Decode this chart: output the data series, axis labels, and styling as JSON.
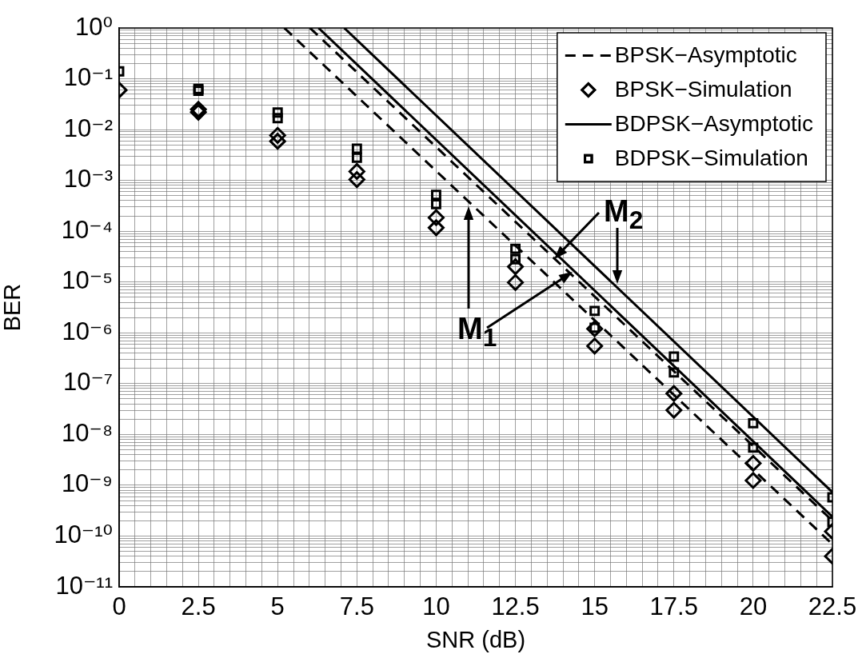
{
  "chart_data": {
    "type": "scatter",
    "xlabel": "SNR (dB)",
    "ylabel": "BER",
    "log": "y",
    "grid": true,
    "legend": "top right",
    "xlim": [
      0,
      22.5
    ],
    "ylim": [
      1e-11,
      1
    ],
    "xticks": [
      0,
      {
        "value": 0.5,
        "label": null
      },
      {
        "value": 1,
        "label": null
      },
      {
        "value": 1.5,
        "label": null
      },
      {
        "value": 2,
        "label": null
      },
      2.5,
      {
        "value": 3,
        "label": null
      },
      {
        "value": 3.5,
        "label": null
      },
      {
        "value": 4,
        "label": null
      },
      {
        "value": 4.5,
        "label": null
      },
      5,
      {
        "value": 5.5,
        "label": null
      },
      {
        "value": 6,
        "label": null
      },
      {
        "value": 6.5,
        "label": null
      },
      {
        "value": 7,
        "label": null
      },
      7.5,
      {
        "value": 8,
        "label": null
      },
      {
        "value": 8.5,
        "label": null
      },
      {
        "value": 9,
        "label": null
      },
      {
        "value": 9.5,
        "label": null
      },
      10,
      {
        "value": 10.5,
        "label": null
      },
      {
        "value": 11,
        "label": null
      },
      {
        "value": 11.5,
        "label": null
      },
      {
        "value": 12,
        "label": null
      },
      12.5,
      {
        "value": 13,
        "label": null
      },
      {
        "value": 13.5,
        "label": null
      },
      {
        "value": 14,
        "label": null
      },
      {
        "value": 14.5,
        "label": null
      },
      15,
      {
        "value": 15.5,
        "label": null
      },
      {
        "value": 16,
        "label": null
      },
      {
        "value": 16.5,
        "label": null
      },
      {
        "value": 17,
        "label": null
      },
      17.5,
      {
        "value": 18,
        "label": null
      },
      {
        "value": 18.5,
        "label": null
      },
      {
        "value": 19,
        "label": null
      },
      {
        "value": 19.5,
        "label": null
      },
      20,
      {
        "value": 20.5,
        "label": null
      },
      {
        "value": 21,
        "label": null
      },
      {
        "value": 21.5,
        "label": null
      },
      {
        "value": 22,
        "label": null
      },
      22.5
    ],
    "yticks": [
      {
        "value": 1,
        "label": "10⁰"
      },
      {
        "value": 0.9,
        "label": null
      },
      {
        "value": 0.8,
        "label": null
      },
      {
        "value": 0.7,
        "label": null
      },
      {
        "value": 0.6,
        "label": null
      },
      {
        "value": 0.5,
        "label": null
      },
      {
        "value": 0.4,
        "label": null
      },
      {
        "value": 0.3,
        "label": null
      },
      {
        "value": 0.2,
        "label": null
      },
      {
        "value": 0.1,
        "label": "10⁻¹"
      },
      {
        "value": 0.09,
        "label": null
      },
      {
        "value": 0.08,
        "label": null
      },
      {
        "value": 0.07,
        "label": null
      },
      {
        "value": 0.06,
        "label": null
      },
      {
        "value": 0.05,
        "label": null
      },
      {
        "value": 0.04,
        "label": null
      },
      {
        "value": 0.03,
        "label": null
      },
      {
        "value": 0.02,
        "label": null
      },
      {
        "value": 0.01,
        "label": "10⁻²"
      },
      {
        "value": 0.009,
        "label": null
      },
      {
        "value": 0.008,
        "label": null
      },
      {
        "value": 0.007,
        "label": null
      },
      {
        "value": 0.006,
        "label": null
      },
      {
        "value": 0.005,
        "label": null
      },
      {
        "value": 0.004,
        "label": null
      },
      {
        "value": 0.003,
        "label": null
      },
      {
        "value": 0.002,
        "label": null
      },
      {
        "value": 0.001,
        "label": "10⁻³"
      },
      {
        "value": 0.0009,
        "label": null
      },
      {
        "value": 0.0008,
        "label": null
      },
      {
        "value": 0.0007,
        "label": null
      },
      {
        "value": 0.0006,
        "label": null
      },
      {
        "value": 0.0005,
        "label": null
      },
      {
        "value": 0.0004,
        "label": null
      },
      {
        "value": 0.0003,
        "label": null
      },
      {
        "value": 0.0002,
        "label": null
      },
      {
        "value": 0.0001,
        "label": "10⁻⁴"
      },
      {
        "value": 9e-05,
        "label": null
      },
      {
        "value": 8e-05,
        "label": null
      },
      {
        "value": 7e-05,
        "label": null
      },
      {
        "value": 6e-05,
        "label": null
      },
      {
        "value": 5e-05,
        "label": null
      },
      {
        "value": 4e-05,
        "label": null
      },
      {
        "value": 3e-05,
        "label": null
      },
      {
        "value": 2e-05,
        "label": null
      },
      {
        "value": 1e-05,
        "label": "10⁻⁵"
      },
      {
        "value": 9e-06,
        "label": null
      },
      {
        "value": 8e-06,
        "label": null
      },
      {
        "value": 7e-06,
        "label": null
      },
      {
        "value": 6e-06,
        "label": null
      },
      {
        "value": 5e-06,
        "label": null
      },
      {
        "value": 4e-06,
        "label": null
      },
      {
        "value": 3e-06,
        "label": null
      },
      {
        "value": 2e-06,
        "label": null
      },
      {
        "value": 1e-06,
        "label": "10⁻⁶"
      },
      {
        "value": 9e-07,
        "label": null
      },
      {
        "value": 8e-07,
        "label": null
      },
      {
        "value": 7e-07,
        "label": null
      },
      {
        "value": 6e-07,
        "label": null
      },
      {
        "value": 5e-07,
        "label": null
      },
      {
        "value": 4e-07,
        "label": null
      },
      {
        "value": 3e-07,
        "label": null
      },
      {
        "value": 2e-07,
        "label": null
      },
      {
        "value": 1e-07,
        "label": "10⁻⁷"
      },
      {
        "value": 9e-08,
        "label": null
      },
      {
        "value": 8e-08,
        "label": null
      },
      {
        "value": 7e-08,
        "label": null
      },
      {
        "value": 6e-08,
        "label": null
      },
      {
        "value": 5e-08,
        "label": null
      },
      {
        "value": 4e-08,
        "label": null
      },
      {
        "value": 3e-08,
        "label": null
      },
      {
        "value": 2e-08,
        "label": null
      },
      {
        "value": 1e-08,
        "label": "10⁻⁸"
      },
      {
        "value": 9e-09,
        "label": null
      },
      {
        "value": 8e-09,
        "label": null
      },
      {
        "value": 7e-09,
        "label": null
      },
      {
        "value": 6e-09,
        "label": null
      },
      {
        "value": 5e-09,
        "label": null
      },
      {
        "value": 4e-09,
        "label": null
      },
      {
        "value": 3e-09,
        "label": null
      },
      {
        "value": 2e-09,
        "label": null
      },
      {
        "value": 1e-09,
        "label": "10⁻⁹"
      },
      {
        "value": 9e-10,
        "label": null
      },
      {
        "value": 8e-10,
        "label": null
      },
      {
        "value": 7e-10,
        "label": null
      },
      {
        "value": 6e-10,
        "label": null
      },
      {
        "value": 5e-10,
        "label": null
      },
      {
        "value": 4e-10,
        "label": null
      },
      {
        "value": 3e-10,
        "label": null
      },
      {
        "value": 2e-10,
        "label": null
      },
      {
        "value": 1e-10,
        "label": "10⁻¹⁰"
      },
      {
        "value": 9e-11,
        "label": null
      },
      {
        "value": 8e-11,
        "label": null
      },
      {
        "value": 7e-11,
        "label": null
      },
      {
        "value": 6e-11,
        "label": null
      },
      {
        "value": 5e-11,
        "label": null
      },
      {
        "value": 4e-11,
        "label": null
      },
      {
        "value": 3e-11,
        "label": null
      },
      {
        "value": 2e-11,
        "label": null
      },
      {
        "value": 1e-11,
        "label": "10⁻¹¹"
      }
    ],
    "x": [
      0,
      2.5,
      5,
      7.5,
      10,
      12.5,
      15,
      17.5,
      20,
      22.5
    ],
    "series": [
      {
        "name": "BPSK−Asymptotic",
        "type": "line",
        "line_style": "dashed",
        "color": "#000000",
        "x": [
          5.21,
          22.5
        ],
        "values": [
          1,
          6.9e-11
        ]
      },
      {
        "type": "line",
        "line_style": "dashed",
        "color": "#000000",
        "x": [
          6.02,
          22.5
        ],
        "values": [
          1,
          2e-10
        ]
      },
      {
        "name": "BPSK−Simulation",
        "type": "scatter",
        "marker": "diamond",
        "color": "#000000",
        "values": [
          0.06,
          0.025,
          0.0077,
          0.0015,
          0.000185,
          2e-05,
          1.2e-06,
          6.4e-08,
          2.7e-09,
          1.23e-10
        ]
      },
      {
        "type": "scatter",
        "marker": "diamond",
        "color": "#000000",
        "values": [
          null,
          0.022,
          0.0059,
          0.00104,
          0.000117,
          9.8e-06,
          5.5e-07,
          3e-08,
          1.24e-09,
          4e-11
        ]
      },
      {
        "name": "BDPSK−Asymptotic",
        "type": "line",
        "line_style": "solid",
        "color": "#000000",
        "x": [
          6.29,
          22.5
        ],
        "values": [
          1,
          2.4e-10
        ]
      },
      {
        "type": "line",
        "line_style": "solid",
        "color": "#000000",
        "x": [
          7.1,
          22.5
        ],
        "values": [
          1,
          7.3e-10
        ]
      },
      {
        "name": "BDPSK−Simulation",
        "type": "scatter",
        "marker": "square",
        "color": "#000000",
        "values": [
          0.14,
          0.063,
          0.0217,
          0.0042,
          0.00052,
          4.5e-05,
          2.7e-06,
          3.4e-07,
          1.66e-08,
          5.8e-10
        ]
      },
      {
        "type": "scatter",
        "marker": "square",
        "color": "#000000",
        "values": [
          null,
          0.058,
          0.0168,
          0.0028,
          0.00034,
          2.8e-05,
          1.26e-06,
          1.66e-07,
          5.5e-09,
          1.9e-10
        ]
      }
    ],
    "annotations": [
      "M$_{1}$",
      "M$_{2}$"
    ]
  }
}
